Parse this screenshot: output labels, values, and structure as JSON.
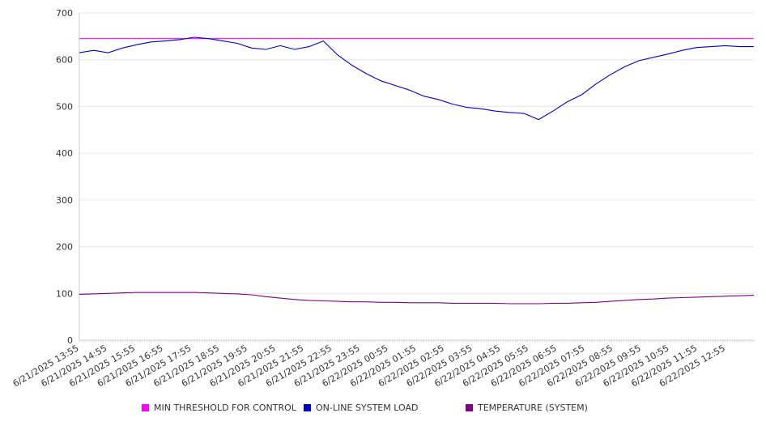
{
  "chart_data": {
    "type": "line",
    "title": "",
    "xlabel": "",
    "ylabel": "",
    "ylim": [
      0,
      700
    ],
    "yticks": [
      0,
      100,
      200,
      300,
      400,
      500,
      600,
      700
    ],
    "grid": true,
    "legend_position": "bottom",
    "x_tick_labels": [
      "6/21/2025 13:55",
      "6/21/2025 14:55",
      "6/21/2025 15:55",
      "6/21/2025 16:55",
      "6/21/2025 17:55",
      "6/21/2025 18:55",
      "6/21/2025 19:55",
      "6/21/2025 20:55",
      "6/21/2025 21:55",
      "6/21/2025 22:55",
      "6/21/2025 23:55",
      "6/22/2025 00:55",
      "6/22/2025 01:55",
      "6/22/2025 02:55",
      "6/22/2025 03:55",
      "6/22/2025 04:55",
      "6/22/2025 05:55",
      "6/22/2025 06:55",
      "6/22/2025 07:55",
      "6/22/2025 08:55",
      "6/22/2025 09:55",
      "6/22/2025 10:55",
      "6/22/2025 11:55",
      "6/22/2025 12:55"
    ],
    "x": [
      "6/21/2025 13:55",
      "6/21/2025 14:25",
      "6/21/2025 14:55",
      "6/21/2025 15:25",
      "6/21/2025 15:55",
      "6/21/2025 16:25",
      "6/21/2025 16:55",
      "6/21/2025 17:25",
      "6/21/2025 17:55",
      "6/21/2025 18:25",
      "6/21/2025 18:55",
      "6/21/2025 19:25",
      "6/21/2025 19:55",
      "6/21/2025 20:25",
      "6/21/2025 20:55",
      "6/21/2025 21:25",
      "6/21/2025 21:55",
      "6/21/2025 22:25",
      "6/21/2025 22:55",
      "6/21/2025 23:25",
      "6/21/2025 23:55",
      "6/22/2025 00:25",
      "6/22/2025 00:55",
      "6/22/2025 01:25",
      "6/22/2025 01:55",
      "6/22/2025 02:25",
      "6/22/2025 02:55",
      "6/22/2025 03:25",
      "6/22/2025 03:55",
      "6/22/2025 04:25",
      "6/22/2025 04:55",
      "6/22/2025 05:25",
      "6/22/2025 05:55",
      "6/22/2025 06:25",
      "6/22/2025 06:55",
      "6/22/2025 07:25",
      "6/22/2025 07:55",
      "6/22/2025 08:25",
      "6/22/2025 08:55",
      "6/22/2025 09:25",
      "6/22/2025 09:55",
      "6/22/2025 10:25",
      "6/22/2025 10:55",
      "6/22/2025 11:25",
      "6/22/2025 11:55",
      "6/22/2025 12:25",
      "6/22/2025 12:55",
      "6/22/2025 13:25"
    ],
    "series": [
      {
        "name": "MIN THRESHOLD FOR CONTROL",
        "color": "#ff00ff",
        "values": [
          645,
          645,
          645,
          645,
          645,
          645,
          645,
          645,
          645,
          645,
          645,
          645,
          645,
          645,
          645,
          645,
          645,
          645,
          645,
          645,
          645,
          645,
          645,
          645,
          645,
          645,
          645,
          645,
          645,
          645,
          645,
          645,
          645,
          645,
          645,
          645,
          645,
          645,
          645,
          645,
          645,
          645,
          645,
          645,
          645,
          645,
          645,
          645
        ]
      },
      {
        "name": "ON-LINE SYSTEM LOAD",
        "color": "#0000cc",
        "values": [
          615,
          620,
          615,
          625,
          632,
          638,
          640,
          643,
          648,
          645,
          640,
          635,
          625,
          622,
          630,
          622,
          628,
          640,
          610,
          588,
          570,
          555,
          545,
          535,
          522,
          515,
          505,
          498,
          495,
          490,
          487,
          485,
          472,
          490,
          510,
          525,
          548,
          568,
          585,
          598,
          605,
          612,
          620,
          626,
          628,
          630,
          628,
          628
        ]
      },
      {
        "name": "TEMPERATURE (SYSTEM)",
        "color": "#800080",
        "values": [
          98,
          99,
          100,
          101,
          102,
          102,
          102,
          102,
          102,
          101,
          100,
          99,
          97,
          93,
          90,
          87,
          85,
          84,
          83,
          82,
          82,
          81,
          81,
          80,
          80,
          80,
          79,
          79,
          79,
          79,
          78,
          78,
          78,
          79,
          79,
          80,
          81,
          83,
          85,
          87,
          88,
          90,
          91,
          92,
          93,
          94,
          95,
          96
        ]
      }
    ]
  }
}
